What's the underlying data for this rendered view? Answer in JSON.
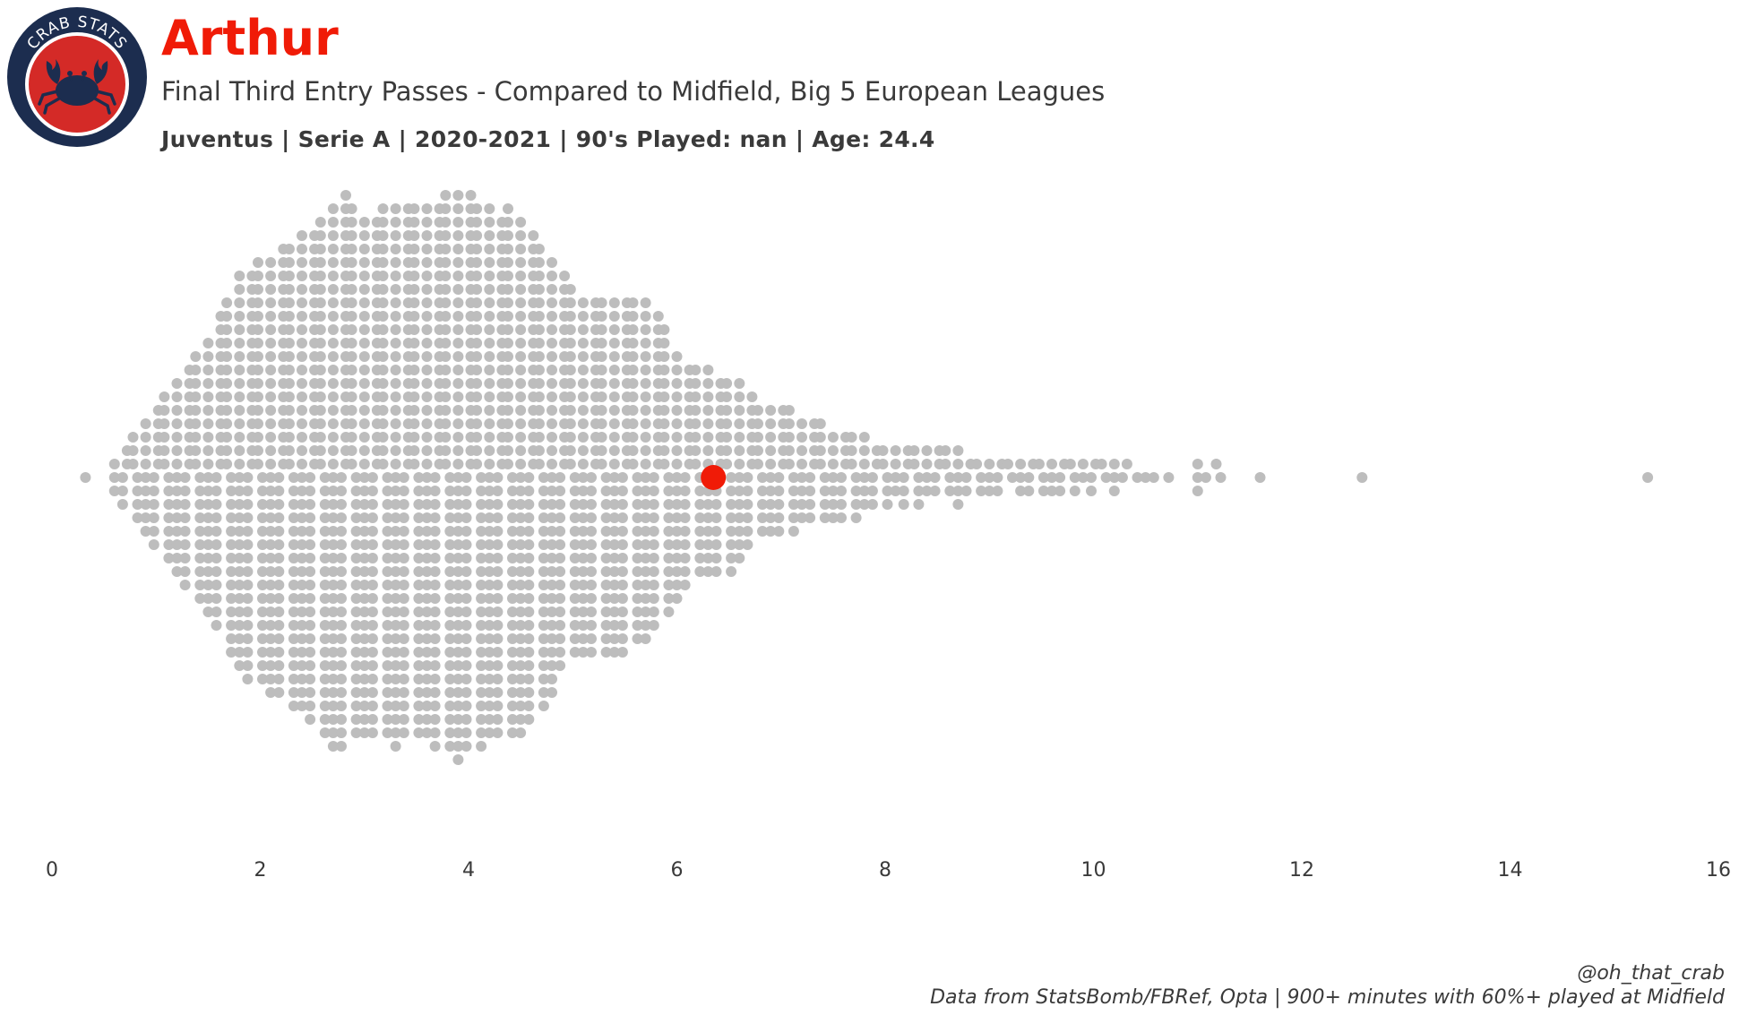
{
  "header": {
    "player_name": "Arthur",
    "subtitle": "Final Third Entry Passes - Compared to Midfield, Big 5 European Leagues",
    "meta": "Juventus  | Serie A | 2020-2021 | 90's Played: nan | Age: 24.4"
  },
  "logo": {
    "text": "CRAB STATS",
    "icon": "crab-icon"
  },
  "footer": {
    "credit": "@oh_that_crab",
    "source": "Data from StatsBomb/FBRef, Opta | 900+ minutes with 60%+ played at Midfield"
  },
  "colors": {
    "highlight": "#f01b07",
    "dots": "#bdbdbd",
    "text": "#3a3a3a",
    "logo_navy": "#1c2d4f",
    "logo_red": "#d42a27"
  },
  "chart_data": {
    "type": "scatter",
    "subtype": "beeswarm",
    "xlabel": "",
    "ylabel": "",
    "xlim": [
      0,
      16
    ],
    "xticks": [
      "0",
      "2",
      "4",
      "6",
      "8",
      "10",
      "12",
      "14",
      "16"
    ],
    "grid": false,
    "highlighted_player": {
      "name": "Arthur",
      "value": 6.35
    },
    "distribution_counts_per_0_1": [
      {
        "bin": 0.3,
        "n": 1
      },
      {
        "bin": 0.6,
        "n": 3
      },
      {
        "bin": 0.7,
        "n": 5
      },
      {
        "bin": 0.8,
        "n": 7
      },
      {
        "bin": 0.9,
        "n": 9
      },
      {
        "bin": 1.0,
        "n": 11
      },
      {
        "bin": 1.1,
        "n": 13
      },
      {
        "bin": 1.2,
        "n": 15
      },
      {
        "bin": 1.3,
        "n": 17
      },
      {
        "bin": 1.4,
        "n": 19
      },
      {
        "bin": 1.5,
        "n": 21
      },
      {
        "bin": 1.6,
        "n": 24
      },
      {
        "bin": 1.7,
        "n": 27
      },
      {
        "bin": 1.8,
        "n": 30
      },
      {
        "bin": 1.9,
        "n": 31
      },
      {
        "bin": 2.0,
        "n": 32
      },
      {
        "bin": 2.1,
        "n": 33
      },
      {
        "bin": 2.2,
        "n": 34
      },
      {
        "bin": 2.3,
        "n": 35
      },
      {
        "bin": 2.4,
        "n": 36
      },
      {
        "bin": 2.5,
        "n": 37
      },
      {
        "bin": 2.6,
        "n": 39
      },
      {
        "bin": 2.7,
        "n": 41
      },
      {
        "bin": 2.8,
        "n": 42
      },
      {
        "bin": 2.9,
        "n": 40
      },
      {
        "bin": 3.0,
        "n": 39
      },
      {
        "bin": 3.1,
        "n": 39
      },
      {
        "bin": 3.2,
        "n": 40
      },
      {
        "bin": 3.3,
        "n": 41
      },
      {
        "bin": 3.4,
        "n": 40
      },
      {
        "bin": 3.5,
        "n": 40
      },
      {
        "bin": 3.6,
        "n": 40
      },
      {
        "bin": 3.7,
        "n": 41
      },
      {
        "bin": 3.8,
        "n": 42
      },
      {
        "bin": 3.9,
        "n": 43
      },
      {
        "bin": 4.0,
        "n": 42
      },
      {
        "bin": 4.1,
        "n": 41
      },
      {
        "bin": 4.2,
        "n": 40
      },
      {
        "bin": 4.3,
        "n": 39
      },
      {
        "bin": 4.4,
        "n": 40
      },
      {
        "bin": 4.5,
        "n": 39
      },
      {
        "bin": 4.6,
        "n": 37
      },
      {
        "bin": 4.7,
        "n": 35
      },
      {
        "bin": 4.8,
        "n": 33
      },
      {
        "bin": 4.9,
        "n": 30
      },
      {
        "bin": 5.0,
        "n": 28
      },
      {
        "bin": 5.1,
        "n": 27
      },
      {
        "bin": 5.2,
        "n": 27
      },
      {
        "bin": 5.3,
        "n": 27
      },
      {
        "bin": 5.4,
        "n": 27
      },
      {
        "bin": 5.5,
        "n": 27
      },
      {
        "bin": 5.6,
        "n": 26
      },
      {
        "bin": 5.7,
        "n": 26
      },
      {
        "bin": 5.8,
        "n": 24
      },
      {
        "bin": 5.9,
        "n": 22
      },
      {
        "bin": 6.0,
        "n": 19
      },
      {
        "bin": 6.1,
        "n": 17
      },
      {
        "bin": 6.2,
        "n": 16
      },
      {
        "bin": 6.3,
        "n": 16
      },
      {
        "bin": 6.4,
        "n": 15
      },
      {
        "bin": 6.5,
        "n": 15
      },
      {
        "bin": 6.6,
        "n": 14
      },
      {
        "bin": 6.7,
        "n": 12
      },
      {
        "bin": 6.8,
        "n": 10
      },
      {
        "bin": 6.9,
        "n": 10
      },
      {
        "bin": 7.0,
        "n": 10
      },
      {
        "bin": 7.1,
        "n": 10
      },
      {
        "bin": 7.2,
        "n": 8
      },
      {
        "bin": 7.3,
        "n": 8
      },
      {
        "bin": 7.4,
        "n": 8
      },
      {
        "bin": 7.5,
        "n": 7
      },
      {
        "bin": 7.6,
        "n": 7
      },
      {
        "bin": 7.7,
        "n": 7
      },
      {
        "bin": 7.8,
        "n": 6
      },
      {
        "bin": 7.9,
        "n": 5
      },
      {
        "bin": 8.0,
        "n": 5
      },
      {
        "bin": 8.1,
        "n": 4
      },
      {
        "bin": 8.2,
        "n": 5
      },
      {
        "bin": 8.3,
        "n": 5
      },
      {
        "bin": 8.4,
        "n": 4
      },
      {
        "bin": 8.5,
        "n": 4
      },
      {
        "bin": 8.6,
        "n": 4
      },
      {
        "bin": 8.7,
        "n": 5
      },
      {
        "bin": 8.8,
        "n": 3
      },
      {
        "bin": 8.9,
        "n": 3
      },
      {
        "bin": 9.0,
        "n": 3
      },
      {
        "bin": 9.1,
        "n": 3
      },
      {
        "bin": 9.2,
        "n": 2
      },
      {
        "bin": 9.3,
        "n": 3
      },
      {
        "bin": 9.4,
        "n": 3
      },
      {
        "bin": 9.5,
        "n": 3
      },
      {
        "bin": 9.6,
        "n": 3
      },
      {
        "bin": 9.7,
        "n": 3
      },
      {
        "bin": 9.8,
        "n": 3
      },
      {
        "bin": 9.9,
        "n": 2
      },
      {
        "bin": 10.0,
        "n": 3
      },
      {
        "bin": 10.1,
        "n": 2
      },
      {
        "bin": 10.2,
        "n": 3
      },
      {
        "bin": 10.3,
        "n": 2
      },
      {
        "bin": 10.4,
        "n": 1
      },
      {
        "bin": 10.5,
        "n": 1
      },
      {
        "bin": 10.6,
        "n": 1
      },
      {
        "bin": 10.7,
        "n": 1
      },
      {
        "bin": 11.0,
        "n": 3
      },
      {
        "bin": 11.1,
        "n": 1
      },
      {
        "bin": 11.2,
        "n": 2
      },
      {
        "bin": 11.6,
        "n": 1
      },
      {
        "bin": 12.6,
        "n": 1
      },
      {
        "bin": 15.3,
        "n": 1
      }
    ]
  }
}
